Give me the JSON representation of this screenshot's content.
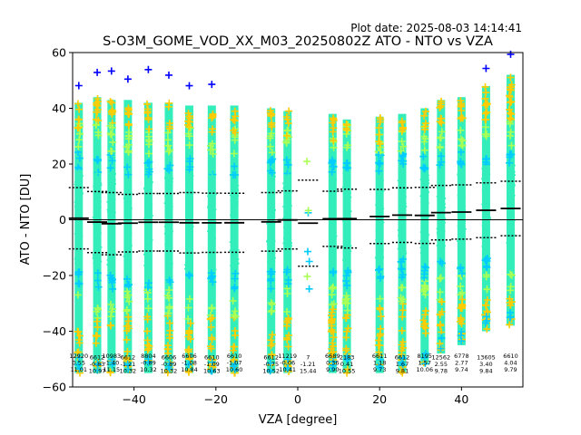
{
  "plot_date": "Plot date: 2025-08-03 14:14:41",
  "chart_data": {
    "type": "scatter",
    "title": "S-O3M_GOME_VOD_XX_M03_20250802Z ATO - NTO vs VZA",
    "xlabel": "VZA [degree]",
    "ylabel": "ATO - NTO [DU]",
    "xlim": [
      -55,
      55
    ],
    "ylim": [
      -60,
      60
    ],
    "xticks": [
      -40,
      -20,
      0,
      20,
      40
    ],
    "yticks": [
      -60,
      -40,
      -20,
      0,
      20,
      40,
      60
    ],
    "grid": false,
    "colors": {
      "dense": "#33eebb",
      "mid": "#aaff55",
      "outer": "#ffcc00",
      "far": "#00ccff",
      "extreme": "#0000ff"
    },
    "bins": [
      {
        "x": -53.5,
        "min": -55,
        "max": 42,
        "count": "12920",
        "mean": "0.55",
        "std": "11.01"
      },
      {
        "x": -49,
        "min": -55,
        "max": 44,
        "count": "6612",
        "mean": "-0.83",
        "std": "10.97"
      },
      {
        "x": -45.5,
        "min": -55,
        "max": 43,
        "count": "10983",
        "mean": "-1.40",
        "std": "11.15"
      },
      {
        "x": -41.5,
        "min": -55,
        "max": 43,
        "count": "6612",
        "mean": "-1.21",
        "std": "10.32"
      },
      {
        "x": -36.5,
        "min": -55,
        "max": 42,
        "count": "8804",
        "mean": "-0.89",
        "std": "10.32"
      },
      {
        "x": -31.5,
        "min": -55,
        "max": 42,
        "count": "6606",
        "mean": "-0.89",
        "std": "10.32"
      },
      {
        "x": -26.5,
        "min": -55,
        "max": 41,
        "count": "6606",
        "mean": "-1.08",
        "std": "10.84"
      },
      {
        "x": -21,
        "min": -55,
        "max": 41,
        "count": "6610",
        "mean": "-1.09",
        "std": "10.63"
      },
      {
        "x": -15.5,
        "min": -55,
        "max": 41,
        "count": "6610",
        "mean": "-1.07",
        "std": "10.60"
      },
      {
        "x": -6.5,
        "min": -55,
        "max": 40,
        "count": "6612",
        "mean": "-0.75",
        "std": "10.52"
      },
      {
        "x": -2.5,
        "min": -55,
        "max": 39,
        "count": "11219",
        "mean": "-0.06",
        "std": "10.41"
      },
      {
        "x": 2.5,
        "min": -29,
        "max": 22,
        "count": "7",
        "mean": "-1.21",
        "std": "15.44"
      },
      {
        "x": 8.5,
        "min": -55,
        "max": 38,
        "count": "6689",
        "mean": "0.36",
        "std": "9.90"
      },
      {
        "x": 12,
        "min": -55,
        "max": 36,
        "count": "2183",
        "mean": "0.41",
        "std": "10.55"
      },
      {
        "x": 20,
        "min": -55,
        "max": 37,
        "count": "6611",
        "mean": "1.18",
        "std": "9.73"
      },
      {
        "x": 25.5,
        "min": -55,
        "max": 38,
        "count": "6612",
        "mean": "1.67",
        "std": "9.81"
      },
      {
        "x": 31,
        "min": -52,
        "max": 40,
        "count": "8195",
        "mean": "1.57",
        "std": "10.06"
      },
      {
        "x": 35,
        "min": -48,
        "max": 43,
        "count": "12562",
        "mean": "2.55",
        "std": "9.78"
      },
      {
        "x": 40,
        "min": -45,
        "max": 44,
        "count": "6778",
        "mean": "2.77",
        "std": "9.74"
      },
      {
        "x": 46,
        "min": -40,
        "max": 48,
        "count": "13605",
        "mean": "3.40",
        "std": "9.84"
      },
      {
        "x": 52,
        "min": -38,
        "max": 52,
        "count": "6610",
        "mean": "4.04",
        "std": "9.79"
      }
    ]
  }
}
